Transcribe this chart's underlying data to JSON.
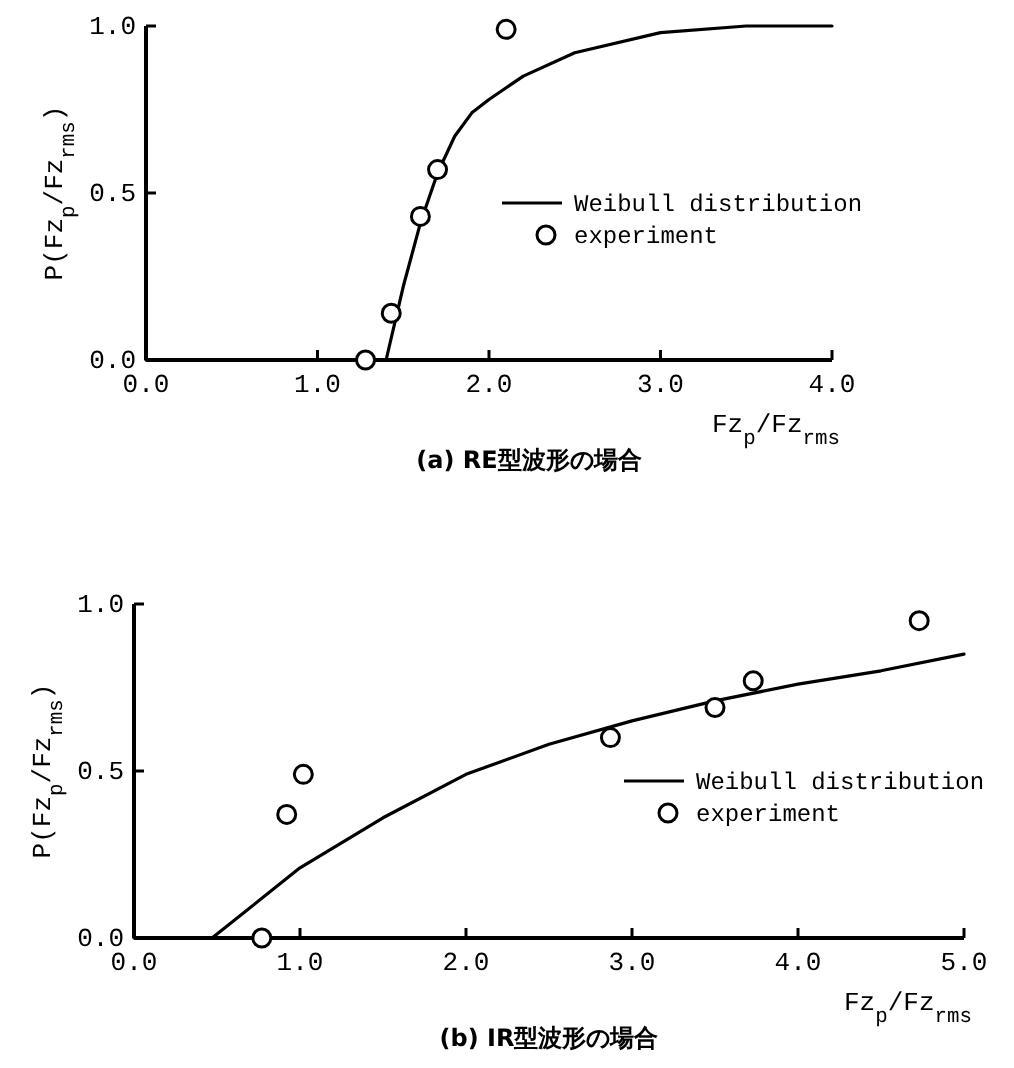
{
  "chart_data": [
    {
      "type": "line",
      "title": "(a) RE型波形の場合",
      "xlabel": "Fz$_{p}$/Fz$_{rms}$",
      "ylabel": "P(Fz$_{p}$/Fz$_{rms}$)",
      "xlim": [
        0,
        4
      ],
      "ylim": [
        0,
        1
      ],
      "xticks": [
        {
          "value": 0,
          "label": "0.0"
        },
        {
          "value": 1,
          "label": "1.0"
        },
        {
          "value": 2,
          "label": "2.0"
        },
        {
          "value": 3,
          "label": "3.0"
        },
        {
          "value": 4,
          "label": "4.0"
        }
      ],
      "yticks": [
        {
          "value": 0,
          "label": "0.0"
        },
        {
          "value": 0.5,
          "label": "0.5"
        },
        {
          "value": 1,
          "label": "1.0"
        }
      ],
      "grid": false,
      "legend": "right",
      "series": [
        {
          "name": "Weibull distribution",
          "color": "#000000",
          "marker": "none",
          "line_style": "solid",
          "x": [
            0,
            1.4,
            1.5,
            1.6,
            1.7,
            1.8,
            1.9,
            2.0,
            2.2,
            2.5,
            3.0,
            3.5,
            4.0
          ],
          "values": [
            0,
            0,
            0.22,
            0.41,
            0.56,
            0.67,
            0.74,
            0.78,
            0.85,
            0.92,
            0.98,
            1.0,
            1.0
          ]
        },
        {
          "name": "experiment",
          "type": "scatter",
          "color": "#000000",
          "marker": "circle",
          "x": [
            1.28,
            1.43,
            1.6,
            1.7,
            2.1
          ],
          "values": [
            0,
            0.14,
            0.43,
            0.57,
            0.99
          ]
        }
      ]
    },
    {
      "type": "line",
      "title": "(b) IR型波形の場合",
      "xlabel": "Fz$_{p}$/Fz$_{rms}$",
      "ylabel": "P(Fz$_{p}$/Fz$_{rms}$)",
      "xlim": [
        0,
        5
      ],
      "ylim": [
        0,
        1
      ],
      "xticks": [
        {
          "value": 0,
          "label": "0.0"
        },
        {
          "value": 1,
          "label": "1.0"
        },
        {
          "value": 2,
          "label": "2.0"
        },
        {
          "value": 3,
          "label": "3.0"
        },
        {
          "value": 4,
          "label": "4.0"
        },
        {
          "value": 5,
          "label": "5.0"
        }
      ],
      "yticks": [
        {
          "value": 0,
          "label": "0.0"
        },
        {
          "value": 0.5,
          "label": "0.5"
        },
        {
          "value": 1,
          "label": "1.0"
        }
      ],
      "grid": false,
      "legend": "right",
      "series": [
        {
          "name": "Weibull distribution",
          "color": "#000000",
          "marker": "none",
          "line_style": "solid",
          "x": [
            0,
            0.47,
            1.0,
            1.5,
            2.0,
            2.5,
            3.0,
            3.5,
            4.0,
            4.5,
            5.0
          ],
          "values": [
            0,
            0,
            0.21,
            0.36,
            0.49,
            0.58,
            0.65,
            0.71,
            0.76,
            0.8,
            0.85
          ]
        },
        {
          "name": "experiment",
          "type": "scatter",
          "color": "#000000",
          "marker": "circle",
          "x": [
            0.77,
            0.92,
            1.02,
            2.87,
            3.5,
            3.73,
            4.73
          ],
          "values": [
            0,
            0.37,
            0.49,
            0.6,
            0.69,
            0.77,
            0.95
          ]
        }
      ]
    }
  ]
}
